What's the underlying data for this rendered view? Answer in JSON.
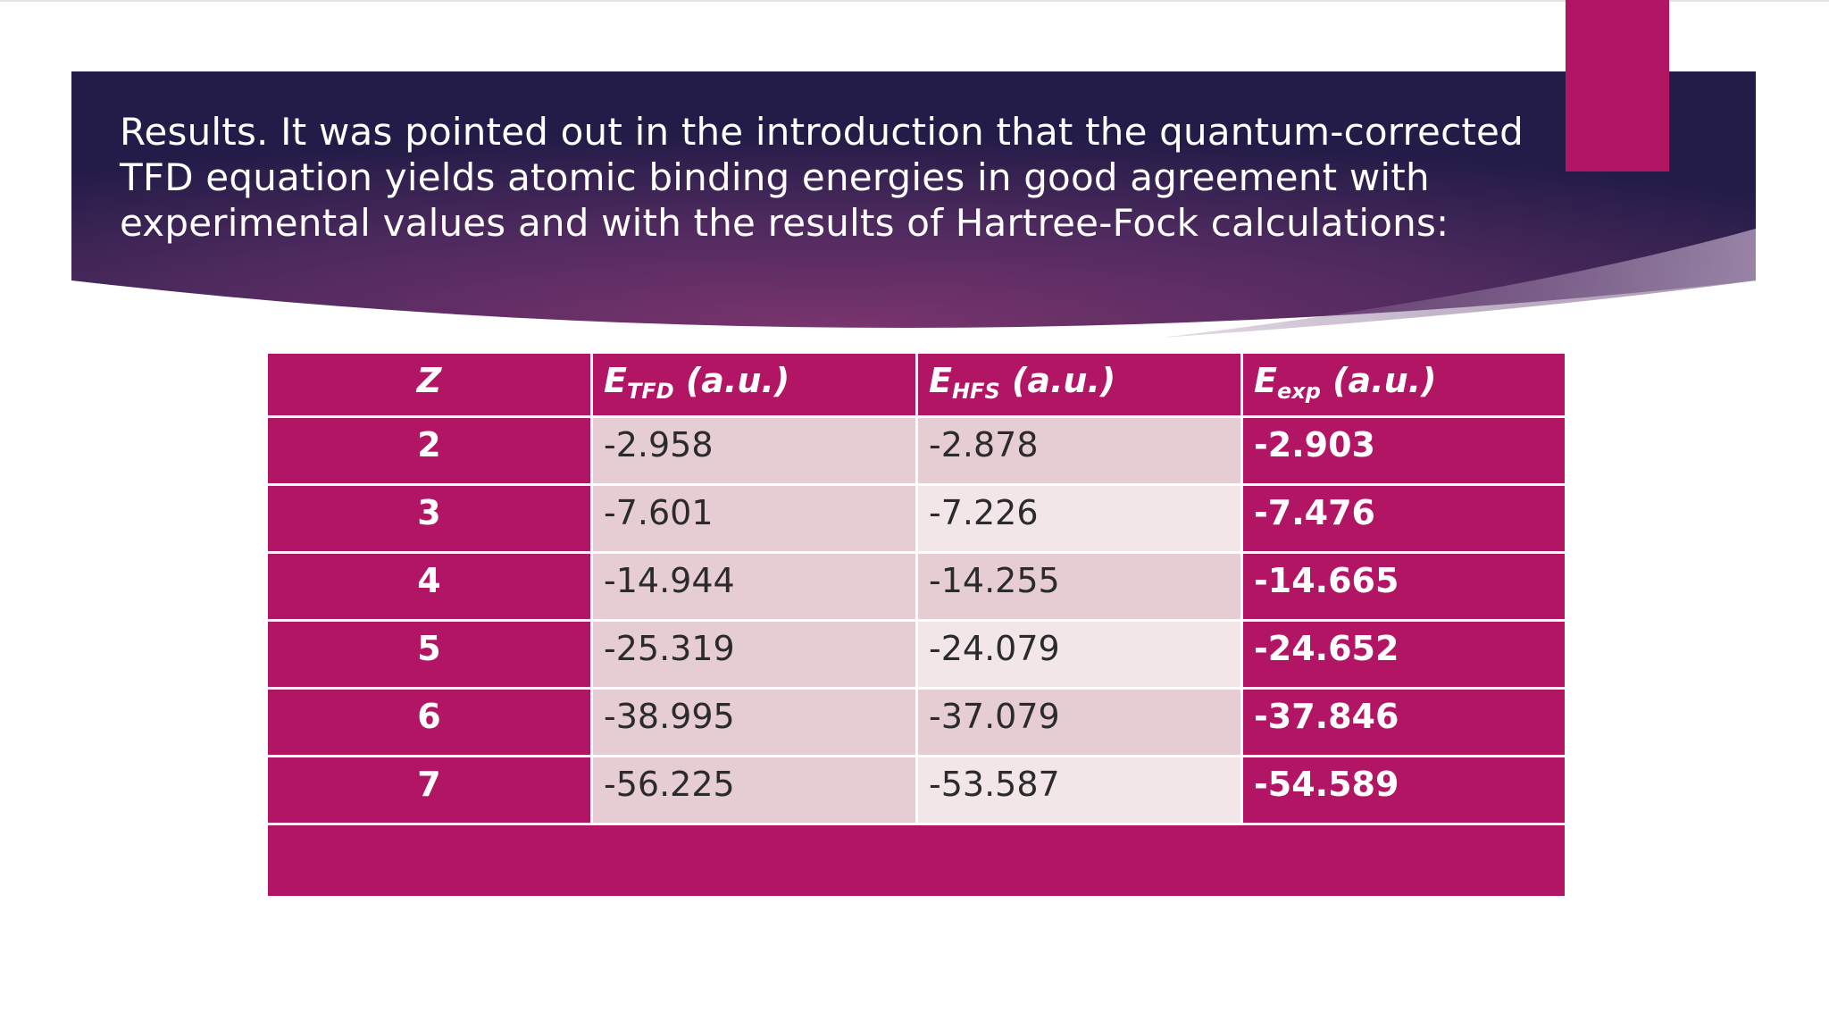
{
  "slide": {
    "title": "Results. It was pointed out in the introduction that the quantum-corrected TFD equation yields atomic binding energies in good agreement with experimental values and with the results of Hartree-Fock calculations:",
    "title_lines": [
      "Results. It was pointed out in the introduction that the quantum-corrected",
      "TFD equation yields atomic binding energies in good agreement with",
      "experimental values and with the results of Hartree-Fock calculations:"
    ]
  },
  "colors": {
    "accent": "#b31565",
    "banner_dark": "#2a1f4c",
    "banner_mid": "#6a2f68",
    "cell_light": "#e6cdd3",
    "cell_lighter": "#f3e6e9"
  },
  "table": {
    "headers": [
      {
        "main": "Z",
        "sub": "",
        "unit": ""
      },
      {
        "main": "E",
        "sub": "TFD",
        "unit": " (a.u.)"
      },
      {
        "main": "E",
        "sub": "HFS",
        "unit": " (a.u.)"
      },
      {
        "main": "E",
        "sub": "exp",
        "unit": " (a.u.)"
      }
    ],
    "rows": [
      {
        "z": "2",
        "tfd": "-2.958",
        "hfs": "-2.878",
        "exp": "-2.903"
      },
      {
        "z": "3",
        "tfd": "-7.601",
        "hfs": "-7.226",
        "exp": "-7.476"
      },
      {
        "z": "4",
        "tfd": "-14.944",
        "hfs": "-14.255",
        "exp": "-14.665"
      },
      {
        "z": "5",
        "tfd": "-25.319",
        "hfs": "-24.079",
        "exp": "-24.652"
      },
      {
        "z": "6",
        "tfd": "-38.995",
        "hfs": "-37.079",
        "exp": "-37.846"
      },
      {
        "z": "7",
        "tfd": "-56.225",
        "hfs": "-53.587",
        "exp": "-54.589"
      }
    ]
  }
}
